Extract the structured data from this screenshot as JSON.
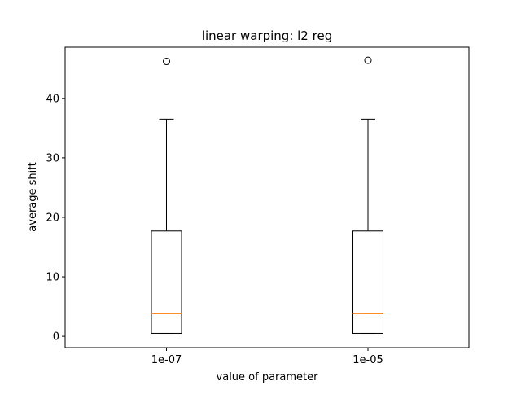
{
  "chart_data": {
    "type": "boxplot",
    "title": "linear warping: l2 reg",
    "xlabel": "value of parameter",
    "ylabel": "average shift",
    "categories": [
      "1e-07",
      "1e-05"
    ],
    "ylim": [
      -1.9,
      48.6
    ],
    "yticks": [
      0,
      10,
      20,
      30,
      40
    ],
    "grid": false,
    "boxes": [
      {
        "category": "1e-07",
        "whisker_low": 0.5,
        "q1": 0.5,
        "median": 3.8,
        "q3": 17.7,
        "whisker_high": 36.5,
        "outliers": [
          46.2
        ]
      },
      {
        "category": "1e-05",
        "whisker_low": 0.5,
        "q1": 0.5,
        "median": 3.8,
        "q3": 17.7,
        "whisker_high": 36.5,
        "outliers": [
          46.4
        ]
      }
    ],
    "colors": {
      "box": "#000000",
      "median": "#ff7f0e",
      "outlier_edge": "#000000"
    }
  }
}
